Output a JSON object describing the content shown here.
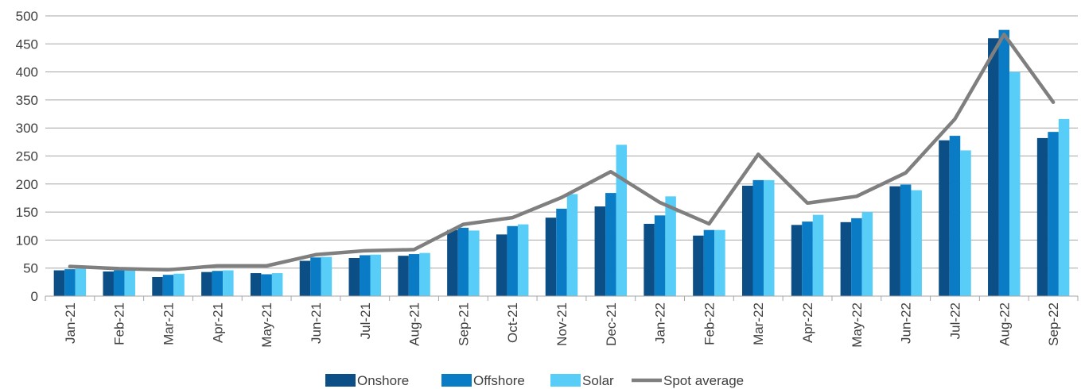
{
  "chart_data": {
    "type": "bar",
    "title": "",
    "xlabel": "",
    "ylabel": "",
    "ylim": [
      0,
      500
    ],
    "yticks": [
      0,
      50,
      100,
      150,
      200,
      250,
      300,
      350,
      400,
      450,
      500
    ],
    "grid": true,
    "legend_position": "bottom",
    "categories": [
      "Jan-21",
      "Feb-21",
      "Mar-21",
      "Apr-21",
      "May-21",
      "Jun-21",
      "Jul-21",
      "Aug-21",
      "Sep-21",
      "Oct-21",
      "Nov-21",
      "Dec-21",
      "Jan-22",
      "Feb-22",
      "Mar-22",
      "Apr-22",
      "May-22",
      "Jun-22",
      "Jul-22",
      "Aug-22",
      "Sep-22"
    ],
    "series": [
      {
        "name": "Onshore",
        "type": "bar",
        "color": "#0b4f86",
        "values": [
          46,
          44,
          34,
          43,
          41,
          63,
          68,
          72,
          118,
          110,
          140,
          160,
          129,
          108,
          197,
          127,
          132,
          196,
          278,
          460,
          282
        ]
      },
      {
        "name": "Offshore",
        "type": "bar",
        "color": "#0a7cc5",
        "values": [
          48,
          46,
          38,
          45,
          39,
          69,
          73,
          75,
          122,
          125,
          156,
          184,
          144,
          118,
          207,
          133,
          139,
          199,
          286,
          475,
          293
        ]
      },
      {
        "name": "Solar",
        "type": "bar",
        "color": "#58cdf7",
        "values": [
          49,
          46,
          40,
          46,
          41,
          70,
          74,
          77,
          117,
          128,
          182,
          270,
          178,
          118,
          207,
          145,
          150,
          189,
          260,
          400,
          316
        ]
      },
      {
        "name": "Spot average",
        "type": "line",
        "color": "#7f7f7f",
        "values": [
          53,
          49,
          47,
          54,
          54,
          74,
          81,
          83,
          128,
          140,
          176,
          222,
          167,
          129,
          253,
          166,
          178,
          220,
          316,
          467,
          346
        ]
      }
    ]
  }
}
